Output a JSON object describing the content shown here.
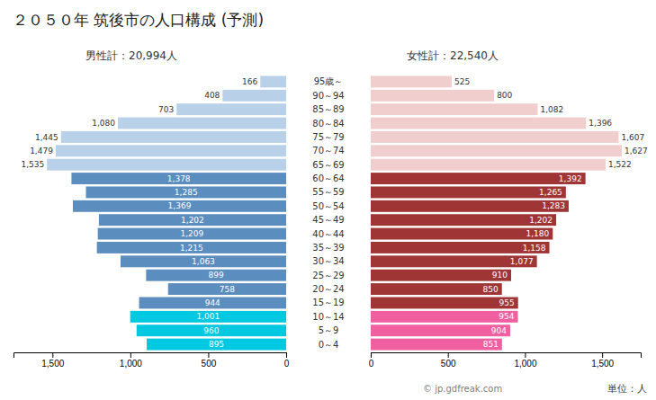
{
  "chart_data": {
    "type": "bar",
    "orientation": "horizontal",
    "title": "２０５０年 筑後市の人口構成 (予測)",
    "categories": [
      "95歳～",
      "90～94",
      "85～89",
      "80～84",
      "75～79",
      "70～74",
      "65～69",
      "60～64",
      "55～59",
      "50～54",
      "45～49",
      "40～44",
      "35～39",
      "30～34",
      "25～29",
      "20～24",
      "15～19",
      "10～14",
      "5～9",
      "0～4"
    ],
    "series": [
      {
        "values": [
          166,
          408,
          703,
          1080,
          1445,
          1479,
          1535,
          1378,
          1285,
          1369,
          1202,
          1209,
          1215,
          1063,
          899,
          758,
          944,
          1001,
          960,
          895
        ],
        "value_labels": [
          "166",
          "408",
          "703",
          "1,080",
          "1,445",
          "1,479",
          "1,535",
          "1,378",
          "1,285",
          "1,369",
          "1,202",
          "1,209",
          "1,215",
          "1,063",
          "899",
          "758",
          "944",
          "1,001",
          "960",
          "895"
        ],
        "colors": [
          "#b8d0e8",
          "#b8d0e8",
          "#b8d0e8",
          "#b8d0e8",
          "#b8d0e8",
          "#b8d0e8",
          "#b8d0e8",
          "#5b8dbf",
          "#5b8dbf",
          "#5b8dbf",
          "#5b8dbf",
          "#5b8dbf",
          "#5b8dbf",
          "#5b8dbf",
          "#5b8dbf",
          "#5b8dbf",
          "#5b8dbf",
          "#00c8e0",
          "#00c8e0",
          "#00c8e0"
        ]
      },
      {
        "values": [
          525,
          800,
          1082,
          1396,
          1607,
          1627,
          1522,
          1392,
          1265,
          1283,
          1202,
          1180,
          1158,
          1077,
          910,
          850,
          955,
          954,
          904,
          851
        ],
        "value_labels": [
          "525",
          "800",
          "1,082",
          "1,396",
          "1,607",
          "1,627",
          "1,522",
          "1,392",
          "1,265",
          "1,283",
          "1,202",
          "1,180",
          "1,158",
          "1,077",
          "910",
          "850",
          "955",
          "954",
          "904",
          "851"
        ],
        "colors": [
          "#f0cece",
          "#f0cece",
          "#f0cece",
          "#f0cece",
          "#f0cece",
          "#f0cece",
          "#f0cece",
          "#a03535",
          "#a03535",
          "#a03535",
          "#a03535",
          "#a03535",
          "#a03535",
          "#a03535",
          "#a03535",
          "#a03535",
          "#a03535",
          "#f060a0",
          "#f060a0",
          "#f060a0"
        ]
      }
    ],
    "xlim": [
      0,
      1750
    ],
    "xticks": [
      0,
      500,
      {
        "value": 1000,
        "label": "1,000"
      },
      {
        "value": 1500,
        "label": "1,500"
      }
    ],
    "data_labels": true,
    "grid": false,
    "annotations": [
      "男性計：20,994人",
      "女性計：22,540人",
      "単位：人",
      "© jp.gdfreak.com"
    ]
  }
}
